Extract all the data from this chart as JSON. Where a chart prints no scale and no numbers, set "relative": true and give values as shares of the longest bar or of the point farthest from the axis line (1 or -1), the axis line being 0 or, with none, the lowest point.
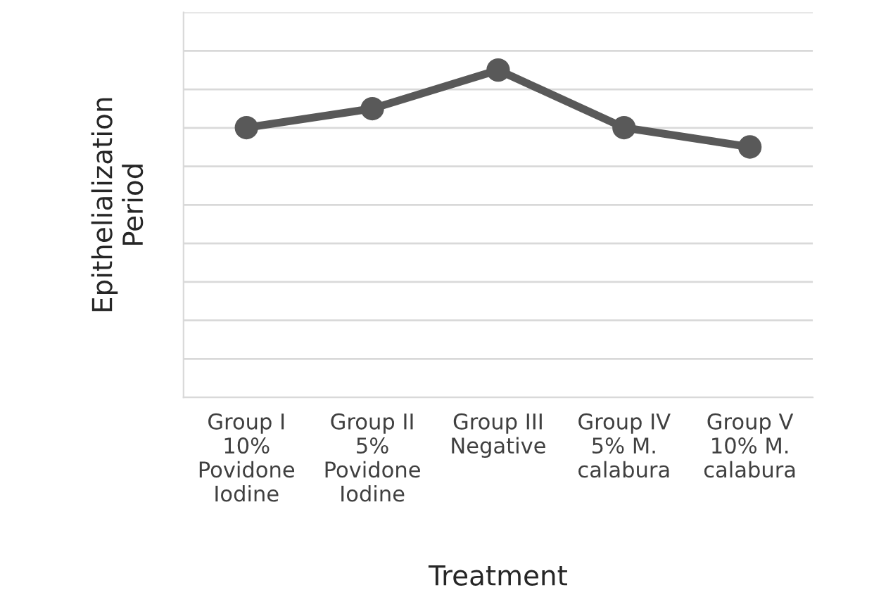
{
  "chart_data": {
    "type": "line",
    "relative": true,
    "xlabel": "Treatment",
    "ylabel": "Epithelialization\nPeriod",
    "categories": [
      "Group I\n10%\nPovidone\nIodine",
      "Group II\n5%\nPovidone\nIodine",
      "Group III\nNegative",
      "Group IV\n5% M.\ncalabura",
      "Group V\n10% M.\ncalabura"
    ],
    "series": [
      {
        "color": "#595959",
        "values": [
          0.824,
          0.882,
          1,
          0.824,
          0.765
        ]
      }
    ],
    "marker": "circle",
    "line_style": "solid",
    "grid": "y",
    "legend": false
  }
}
